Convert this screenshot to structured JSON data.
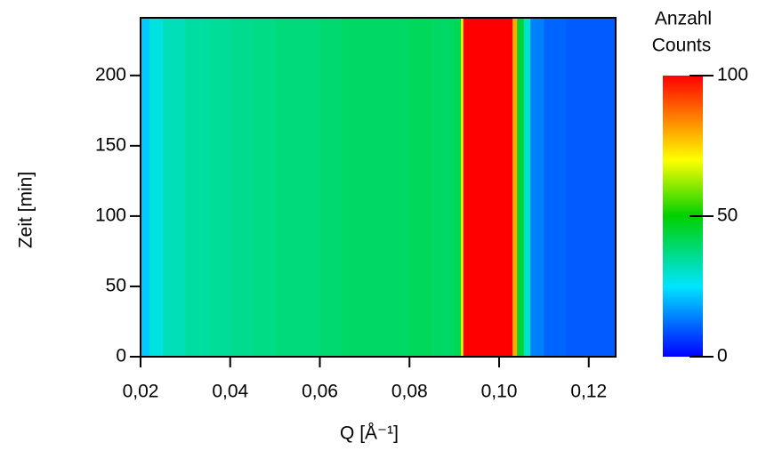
{
  "chart_data": {
    "type": "heatmap",
    "x_label": "Q [Å⁻¹]",
    "y_label": "Zeit [min]",
    "colorbar_title": [
      "Anzahl",
      "Counts"
    ],
    "xbins": [
      0.02,
      0.022,
      0.025,
      0.03,
      0.035,
      0.04,
      0.045,
      0.05,
      0.055,
      0.06,
      0.065,
      0.07,
      0.075,
      0.08,
      0.085,
      0.09,
      0.0915,
      0.092,
      0.103,
      0.104,
      0.1055,
      0.107,
      0.11,
      0.115,
      0.12,
      0.126
    ],
    "ybins": [
      0,
      241
    ],
    "values": [
      [
        22,
        28,
        32,
        34,
        35,
        36,
        37,
        38,
        38,
        39,
        40,
        40,
        40,
        41,
        40,
        42,
        70,
        100,
        80,
        45,
        30,
        14,
        11,
        10,
        10
      ]
    ],
    "xlim": [
      0.02,
      0.126
    ],
    "ylim": [
      0,
      241
    ],
    "xticks": [
      {
        "value": 0.02,
        "label": "0,02"
      },
      {
        "value": 0.04,
        "label": "0,04"
      },
      {
        "value": 0.06,
        "label": "0,06"
      },
      {
        "value": 0.08,
        "label": "0,08"
      },
      {
        "value": 0.1,
        "label": "0,10"
      },
      {
        "value": 0.12,
        "label": "0,12"
      }
    ],
    "yticks": [
      0,
      50,
      100,
      150,
      200
    ],
    "clim": [
      0,
      100
    ],
    "cticks": [
      0,
      50,
      100
    ],
    "colormap": [
      {
        "value": 0,
        "color": "#0000ff"
      },
      {
        "value": 25,
        "color": "#00e5ff"
      },
      {
        "value": 50,
        "color": "#00d000"
      },
      {
        "value": 70,
        "color": "#ffff00"
      },
      {
        "value": 85,
        "color": "#ff8000"
      },
      {
        "value": 100,
        "color": "#ff0000"
      }
    ]
  }
}
